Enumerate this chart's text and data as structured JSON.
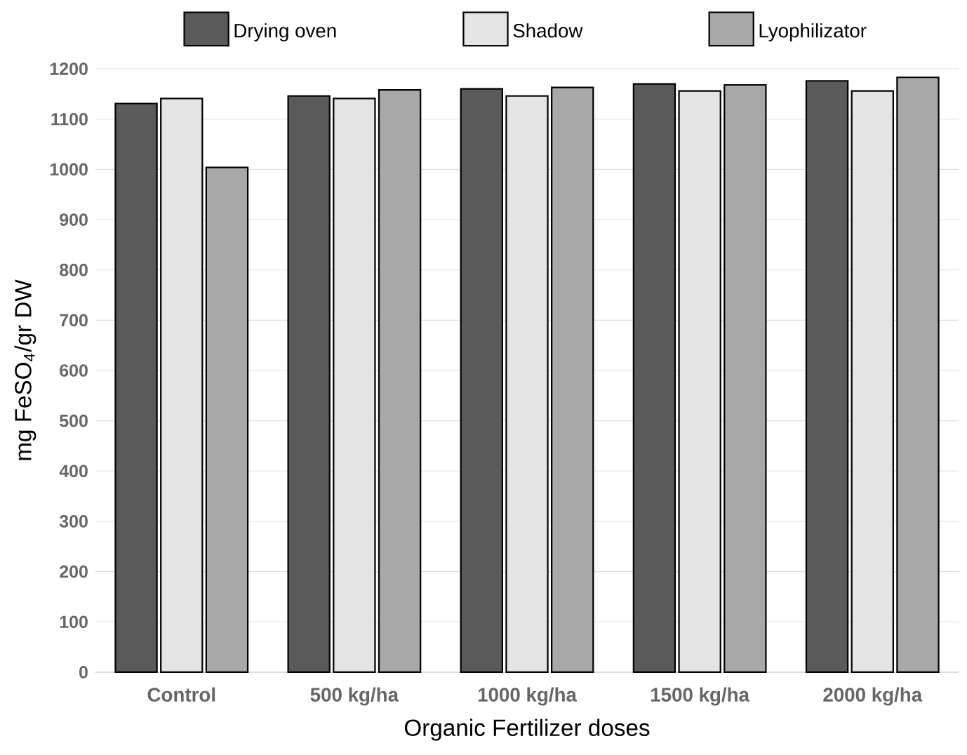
{
  "chart_data": {
    "type": "bar",
    "xlabel": "Organic Fertilizer doses",
    "ylabel": "mg FeSO$_{4}$/gr DW",
    "categories": [
      "Control",
      "500 kg/ha",
      "1000 kg/ha",
      "1500 kg/ha",
      "2000 kg/ha"
    ],
    "series": [
      {
        "name": "Drying oven",
        "color": "#5a5a5a",
        "values": [
          1131,
          1146,
          1160,
          1170,
          1176
        ]
      },
      {
        "name": "Shadow",
        "color": "#e4e4e4",
        "values": [
          1141,
          1141,
          1146,
          1156,
          1156
        ]
      },
      {
        "name": "Lyophilizator",
        "color": "#a8a8a8",
        "values": [
          1004,
          1158,
          1163,
          1168,
          1183
        ]
      }
    ],
    "ylim": [
      0,
      1200
    ],
    "yticks": [
      0,
      100,
      200,
      300,
      400,
      500,
      600,
      700,
      800,
      900,
      1000,
      1100,
      1200
    ],
    "grid": "y",
    "legend": "top"
  }
}
